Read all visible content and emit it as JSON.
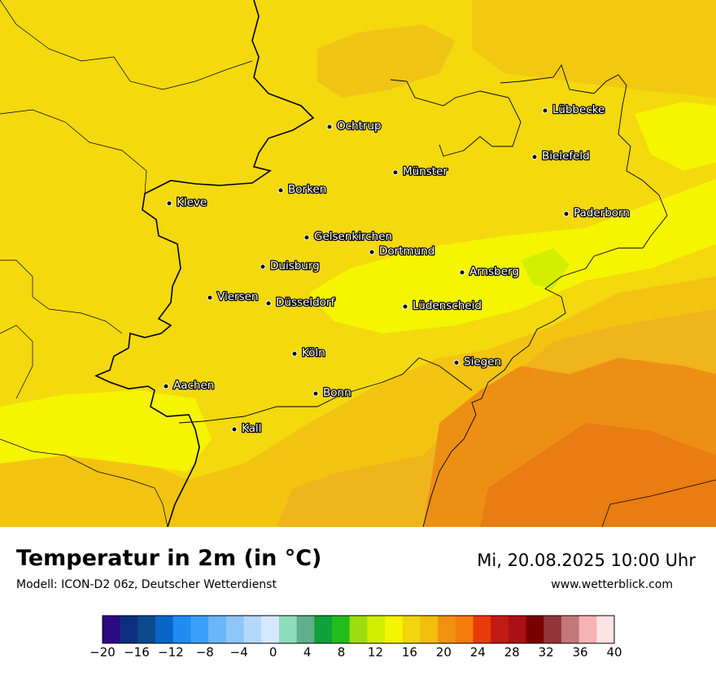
{
  "map": {
    "cities": [
      {
        "name": "Lübbecke"
      },
      {
        "name": "Ochtrup"
      },
      {
        "name": "Bielefeld"
      },
      {
        "name": "Münster"
      },
      {
        "name": "Kleve"
      },
      {
        "name": "Borken"
      },
      {
        "name": "Paderborn"
      },
      {
        "name": "Gelsenkirchen"
      },
      {
        "name": "Dortmund"
      },
      {
        "name": "Duisburg"
      },
      {
        "name": "Arnsberg"
      },
      {
        "name": "Viersen"
      },
      {
        "name": "Düsseldorf"
      },
      {
        "name": "Lüdenscheid"
      },
      {
        "name": "Köln"
      },
      {
        "name": "Siegen"
      },
      {
        "name": "Aachen"
      },
      {
        "name": "Bonn"
      },
      {
        "name": "Kall"
      }
    ]
  },
  "header": {
    "title": "Temperatur in 2m (in °C)",
    "model": "Modell: ICON-D2 06z, Deutscher Wetterdienst",
    "valid_time": "Mi, 20.08.2025 10:00 Uhr",
    "source": "www.wetterblick.com"
  },
  "legend": {
    "min": -20,
    "max": 40,
    "step": 2,
    "tick_labels": [
      "−20",
      "−16",
      "−12",
      "−8",
      "−4",
      "0",
      "4",
      "8",
      "12",
      "16",
      "20",
      "24",
      "28",
      "32",
      "36",
      "40"
    ],
    "colors": [
      "#2c0a82",
      "#0b2f7e",
      "#0c4a8c",
      "#0865c8",
      "#1e8cf0",
      "#3ba0f8",
      "#6bb6f8",
      "#8ec6fa",
      "#b4d8fb",
      "#d6e8fd",
      "#8fdcbc",
      "#5fb08a",
      "#11a03a",
      "#24bb1c",
      "#a0dd10",
      "#d2ef02",
      "#f5f500",
      "#f2d50c",
      "#f2bd0c",
      "#f0920f",
      "#f57c0a",
      "#e93b09",
      "#c21a13",
      "#aa1116",
      "#7a0000",
      "#92353a",
      "#c37878",
      "#f6b3b3",
      "#ffe3e3"
    ]
  }
}
